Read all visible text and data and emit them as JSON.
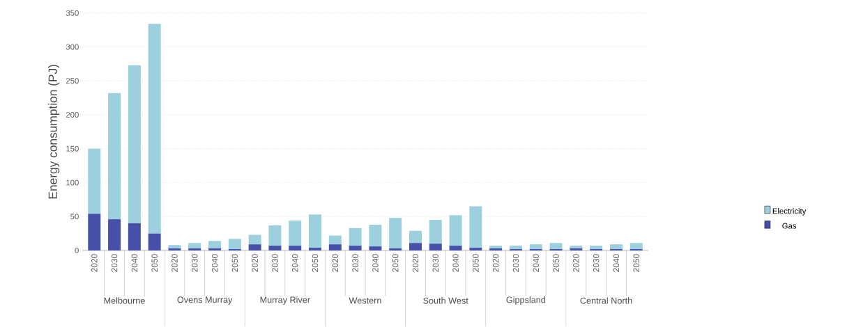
{
  "chart_data": {
    "type": "bar",
    "stacked": true,
    "ylabel": "Energy consumption (PJ)",
    "categories": [
      "2020",
      "2030",
      "2040",
      "2050",
      "2020",
      "2030",
      "2040",
      "2050",
      "2020",
      "2030",
      "2040",
      "2050",
      "2020",
      "2030",
      "2040",
      "2050",
      "2020",
      "2030",
      "2040",
      "2050",
      "2020",
      "2030",
      "2040",
      "2050",
      "2020",
      "2030",
      "2040",
      "2050"
    ],
    "annotations": [
      "Melbourne",
      "Ovens Murray",
      "Murray River",
      "Western",
      "South West",
      "Gippsland",
      "Central North"
    ],
    "series": [
      {
        "name": "Gas",
        "color": "#4650a8",
        "values": [
          54,
          46,
          40,
          25,
          3,
          3,
          3,
          2,
          9,
          7,
          7,
          4,
          9,
          7,
          6,
          3,
          11,
          10,
          7,
          4,
          3,
          2,
          2,
          2,
          3,
          2,
          2,
          2
        ]
      },
      {
        "name": "Electricity",
        "color": "#9dd0df",
        "values": [
          96,
          186,
          233,
          309,
          5,
          8,
          11,
          15,
          14,
          30,
          37,
          49,
          13,
          26,
          32,
          45,
          18,
          35,
          45,
          61,
          4,
          5,
          7,
          9,
          4,
          5,
          7,
          9
        ]
      }
    ],
    "ylim": [
      0,
      350
    ],
    "yticks": [
      0,
      50,
      100,
      150,
      200,
      250,
      300,
      350
    ],
    "grid": "y",
    "legend": "right"
  }
}
